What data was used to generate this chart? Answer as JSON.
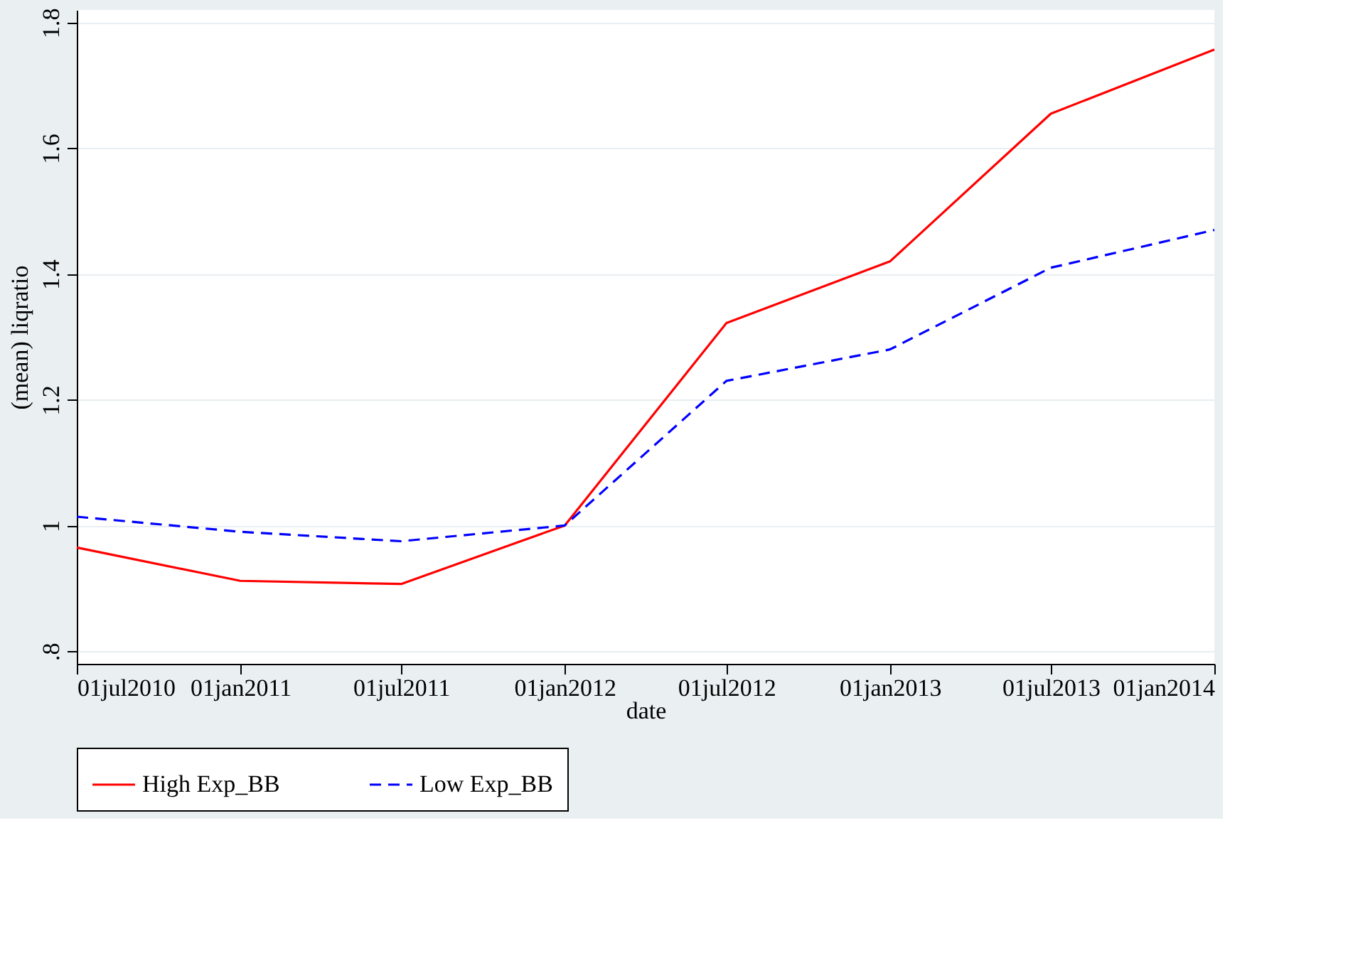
{
  "chart_data": {
    "type": "line",
    "xlabel": "date",
    "ylabel": "(mean) liqratio",
    "x": [
      "2010-07-01",
      "2011-01-01",
      "2011-07-01",
      "2012-01-01",
      "2012-07-01",
      "2013-01-01",
      "2013-07-01",
      "2014-01-01"
    ],
    "series": [
      {
        "name": "High Exp_BB",
        "color": "#ff0000",
        "line_style": "solid",
        "values": [
          0.965,
          0.912,
          0.907,
          1.0,
          1.322,
          1.42,
          1.655,
          1.757
        ]
      },
      {
        "name": "Low Exp_BB",
        "color": "#0000ff",
        "line_style": "dashed",
        "values": [
          1.014,
          0.99,
          0.975,
          1.0,
          1.23,
          1.28,
          1.41,
          1.47
        ]
      }
    ],
    "xlim": [
      "2010-07-01",
      "2014-01-01"
    ],
    "xticks": [
      {
        "value": "2010-07-01",
        "label": "01jul2010"
      },
      {
        "value": "2011-01-01",
        "label": "01jan2011"
      },
      {
        "value": "2011-07-01",
        "label": "01jul2011"
      },
      {
        "value": "2012-01-01",
        "label": "01jan2012"
      },
      {
        "value": "2012-07-01",
        "label": "01jul2012"
      },
      {
        "value": "2013-01-01",
        "label": "01jan2013"
      },
      {
        "value": "2013-07-01",
        "label": "01jul2013"
      },
      {
        "value": "2014-01-01",
        "label": "01jan2014"
      }
    ],
    "ylim": [
      0.78,
      1.82
    ],
    "yticks": [
      {
        "value": 0.8,
        "label": ".8"
      },
      1,
      1.2,
      1.4,
      1.6,
      1.8
    ],
    "grid": "y",
    "legend": "bottom",
    "marker": "none"
  }
}
